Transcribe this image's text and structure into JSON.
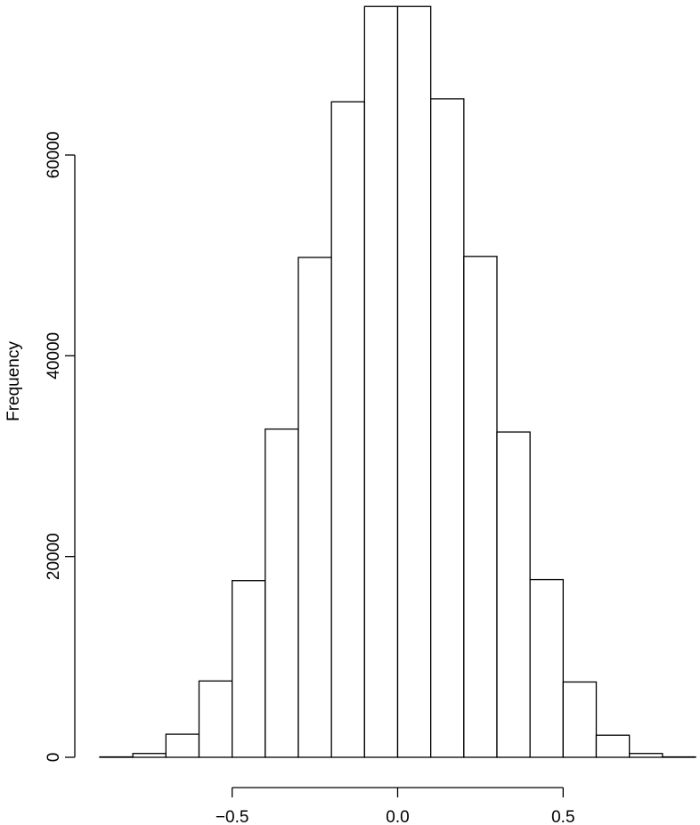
{
  "chart_data": {
    "type": "bar",
    "title": "",
    "xlabel": "",
    "ylabel": "Frequency",
    "bin_edges": [
      -0.9,
      -0.8,
      -0.7,
      -0.6,
      -0.5,
      -0.4,
      -0.3,
      -0.2,
      -0.1,
      0.0,
      0.1,
      0.2,
      0.3,
      0.4,
      0.5,
      0.6,
      0.7,
      0.8,
      0.9
    ],
    "values": [
      40,
      380,
      2300,
      7600,
      17600,
      32700,
      49800,
      65300,
      74800,
      74800,
      65600,
      49900,
      32400,
      17700,
      7500,
      2200,
      380,
      40
    ],
    "xlim": [
      -0.9,
      0.9
    ],
    "ylim": [
      0,
      75000
    ],
    "x_ticks": [
      -0.5,
      0.0,
      0.5
    ],
    "x_tick_labels": [
      "−0.5",
      "0.0",
      "0.5"
    ],
    "y_ticks": [
      0,
      20000,
      40000,
      60000
    ],
    "y_tick_labels": [
      "0",
      "20000",
      "40000",
      "60000"
    ],
    "grid": false,
    "legend": "none"
  }
}
